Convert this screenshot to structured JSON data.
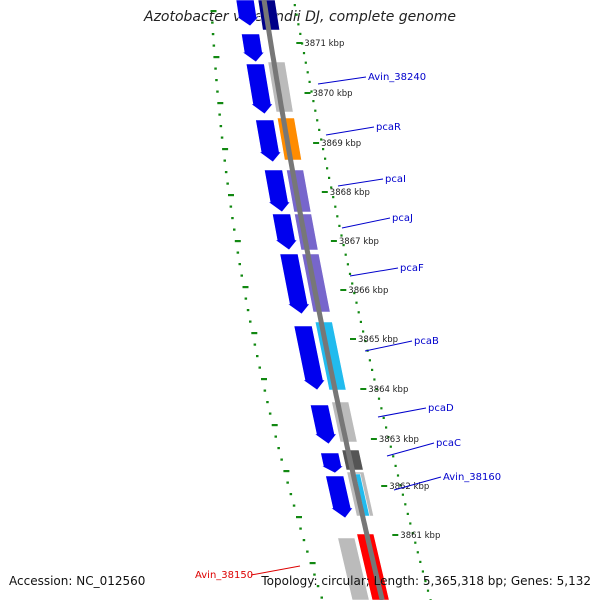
{
  "title": "Azotobacter vinelandii DJ, complete genome",
  "footer": {
    "accession": "Accession: NC_012560",
    "summary": "Topology: circular; Length: 5,365,318 bp; Genes: 5,132"
  },
  "scale": {
    "ticks": [
      "3871 kbp",
      "3870 kbp",
      "3869 kbp",
      "3868 kbp",
      "3867 kbp",
      "3866 kbp",
      "3865 kbp",
      "3864 kbp",
      "3863 kbp",
      "3862 kbp",
      "3861 kbp"
    ]
  },
  "genes": [
    {
      "label": "Avin_38240",
      "color": "#0000cc"
    },
    {
      "label": "pcaR",
      "color": "#0000cc"
    },
    {
      "label": "pcaI",
      "color": "#0000cc"
    },
    {
      "label": "pcaJ",
      "color": "#0000cc"
    },
    {
      "label": "pcaF",
      "color": "#0000cc"
    },
    {
      "label": "pcaB",
      "color": "#0000cc"
    },
    {
      "label": "pcaD",
      "color": "#0000cc"
    },
    {
      "label": "pcaC",
      "color": "#0000cc"
    },
    {
      "label": "Avin_38160",
      "color": "#0000cc"
    },
    {
      "label": "Avin_38150",
      "color": "#dd0000"
    }
  ],
  "colors": {
    "backbone": "#777777",
    "tick": "#118811",
    "cds_arrow": "#0000ee",
    "highlight_red": "#ff0000",
    "orange": "#ff8c00",
    "purple": "#7766cc",
    "cyan": "#22bbee",
    "gray": "#bbbbbb",
    "dark_gray": "#555555",
    "navy": "#000088"
  }
}
